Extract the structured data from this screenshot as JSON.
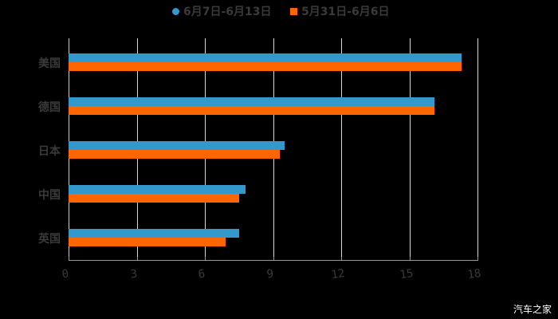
{
  "chart_data": {
    "type": "bar",
    "orientation": "horizontal",
    "title": "",
    "xlabel": "",
    "ylabel": "",
    "categories": [
      "美国",
      "德国",
      "日本",
      "中国",
      "英国"
    ],
    "series": [
      {
        "name": "6月7日-6月13日",
        "color": "#3399cc",
        "marker": "circle",
        "values": [
          17.3,
          16.1,
          9.5,
          7.8,
          7.5
        ]
      },
      {
        "name": "5月31日-6月6日",
        "color": "#ff6600",
        "marker": "square",
        "values": [
          17.3,
          16.1,
          9.3,
          7.5,
          6.9
        ]
      }
    ],
    "xlim": [
      0,
      18
    ],
    "xticks": [
      "0",
      "3",
      "6",
      "9",
      "12",
      "15",
      "18"
    ],
    "grid": "vertical",
    "legend_position": "top"
  },
  "legend": {
    "items": [
      {
        "label": "6月7日-6月13日",
        "color": "#3399cc"
      },
      {
        "label": "5月31日-6月6日",
        "color": "#ff6600"
      }
    ]
  },
  "watermark": "汽车之家"
}
